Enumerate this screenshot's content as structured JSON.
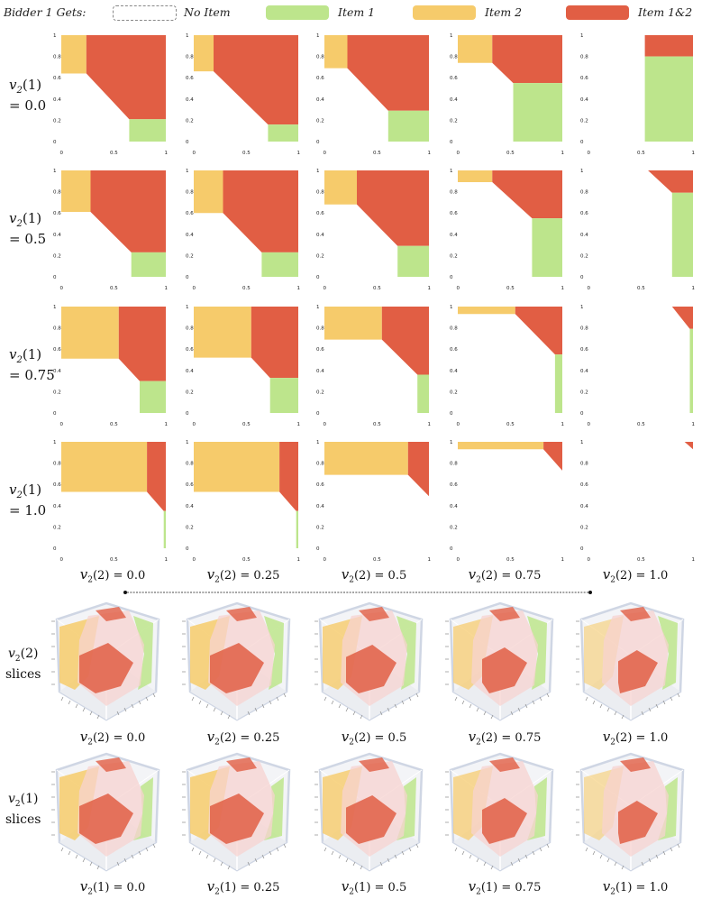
{
  "legend": {
    "title": "Bidder 1 Gets:",
    "items": [
      {
        "label": "No Item",
        "color": "#ffffff",
        "border": "#888888"
      },
      {
        "label": "Item 1",
        "color": "#bde58c"
      },
      {
        "label": "Item 2",
        "color": "#f6cb6b"
      },
      {
        "label": "Item 1&2",
        "color": "#e15e44"
      }
    ]
  },
  "colors": {
    "none": "#ffffff",
    "item1": "#bde58c",
    "item2": "#f6cb6b",
    "both": "#e15e44"
  },
  "grid_rows": [
    {
      "var": "v",
      "sub": "2",
      "arg": "(1)",
      "value": "= 0.0"
    },
    {
      "var": "v",
      "sub": "2",
      "arg": "(1)",
      "value": "= 0.5"
    },
    {
      "var": "v",
      "sub": "2",
      "arg": "(1)",
      "value": "= 0.75"
    },
    {
      "var": "v",
      "sub": "2",
      "arg": "(1)",
      "value": "= 1.0"
    }
  ],
  "grid_cols": [
    {
      "var": "v",
      "sub": "2",
      "arg": "(2) = 0.0"
    },
    {
      "var": "v",
      "sub": "2",
      "arg": "(2) = 0.25"
    },
    {
      "var": "v",
      "sub": "2",
      "arg": "(2) = 0.5"
    },
    {
      "var": "v",
      "sub": "2",
      "arg": "(2) = 0.75"
    },
    {
      "var": "v",
      "sub": "2",
      "arg": "(2) = 1.0"
    }
  ],
  "x_ticks": [
    "0",
    "0.5",
    "1"
  ],
  "y_ticks": [
    "1",
    "0.8",
    "0.6",
    "0.4",
    "0.2",
    "0"
  ],
  "chart_data": {
    "type": "area",
    "x_range": [
      0,
      1
    ],
    "y_range": [
      0,
      1
    ],
    "panels": [
      [
        {
          "item2": [
            [
              0,
              0.64
            ],
            [
              0.24,
              0.64
            ],
            [
              0.24,
              1
            ],
            [
              0,
              1
            ]
          ],
          "both": [
            [
              0.24,
              0.64
            ],
            [
              0.24,
              1
            ],
            [
              1,
              1
            ],
            [
              1,
              0.21
            ],
            [
              0.65,
              0.21
            ]
          ],
          "item1": [
            [
              0.65,
              0
            ],
            [
              1,
              0
            ],
            [
              1,
              0.21
            ],
            [
              0.65,
              0.21
            ]
          ]
        },
        {
          "item2": [
            [
              0,
              0.66
            ],
            [
              0.19,
              0.66
            ],
            [
              0.19,
              1
            ],
            [
              0,
              1
            ]
          ],
          "both": [
            [
              0.19,
              0.66
            ],
            [
              0.19,
              1
            ],
            [
              1,
              1
            ],
            [
              1,
              0.16
            ],
            [
              0.71,
              0.16
            ]
          ],
          "item1": [
            [
              0.71,
              0
            ],
            [
              1,
              0
            ],
            [
              1,
              0.16
            ],
            [
              0.71,
              0.16
            ]
          ]
        },
        {
          "item2": [
            [
              0,
              0.69
            ],
            [
              0.22,
              0.69
            ],
            [
              0.22,
              1
            ],
            [
              0,
              1
            ]
          ],
          "both": [
            [
              0.22,
              0.69
            ],
            [
              0.22,
              1
            ],
            [
              1,
              1
            ],
            [
              1,
              0.29
            ],
            [
              0.61,
              0.29
            ]
          ],
          "item1": [
            [
              0.61,
              0
            ],
            [
              1,
              0
            ],
            [
              1,
              0.29
            ],
            [
              0.61,
              0.29
            ]
          ]
        },
        {
          "item2": [
            [
              0,
              0.74
            ],
            [
              0.33,
              0.74
            ],
            [
              0.33,
              1
            ],
            [
              0,
              1
            ]
          ],
          "both": [
            [
              0.33,
              0.74
            ],
            [
              0.33,
              1
            ],
            [
              1,
              1
            ],
            [
              1,
              0.55
            ],
            [
              0.53,
              0.55
            ]
          ],
          "item1": [
            [
              0.53,
              0
            ],
            [
              1,
              0
            ],
            [
              1,
              0.55
            ],
            [
              0.53,
              0.55
            ]
          ]
        },
        {
          "item2": [],
          "both": [
            [
              0.54,
              1
            ],
            [
              1,
              1
            ],
            [
              1,
              0.8
            ],
            [
              0.54,
              0.8
            ],
            [
              0.54,
              0.98
            ]
          ],
          "item1": [
            [
              0.54,
              0
            ],
            [
              1,
              0
            ],
            [
              1,
              0.8
            ],
            [
              0.54,
              0.8
            ]
          ]
        }
      ],
      [
        {
          "item2": [
            [
              0,
              0.61
            ],
            [
              0.28,
              0.61
            ],
            [
              0.28,
              1
            ],
            [
              0,
              1
            ]
          ],
          "both": [
            [
              0.28,
              0.61
            ],
            [
              0.28,
              1
            ],
            [
              1,
              1
            ],
            [
              1,
              0.23
            ],
            [
              0.67,
              0.23
            ]
          ],
          "item1": [
            [
              0.67,
              0
            ],
            [
              1,
              0
            ],
            [
              1,
              0.23
            ],
            [
              0.67,
              0.23
            ]
          ]
        },
        {
          "item2": [
            [
              0,
              0.6
            ],
            [
              0.28,
              0.6
            ],
            [
              0.28,
              1
            ],
            [
              0,
              1
            ]
          ],
          "both": [
            [
              0.28,
              0.6
            ],
            [
              0.28,
              1
            ],
            [
              1,
              1
            ],
            [
              1,
              0.23
            ],
            [
              0.65,
              0.23
            ]
          ],
          "item1": [
            [
              0.65,
              0
            ],
            [
              1,
              0
            ],
            [
              1,
              0.23
            ],
            [
              0.65,
              0.23
            ]
          ]
        },
        {
          "item2": [
            [
              0,
              0.68
            ],
            [
              0.31,
              0.68
            ],
            [
              0.31,
              1
            ],
            [
              0,
              1
            ]
          ],
          "both": [
            [
              0.31,
              0.68
            ],
            [
              0.31,
              1
            ],
            [
              1,
              1
            ],
            [
              1,
              0.29
            ],
            [
              0.7,
              0.29
            ]
          ],
          "item1": [
            [
              0.7,
              0
            ],
            [
              1,
              0
            ],
            [
              1,
              0.29
            ],
            [
              0.7,
              0.29
            ]
          ]
        },
        {
          "item2": [
            [
              0,
              0.89
            ],
            [
              0.33,
              0.89
            ],
            [
              0.33,
              1
            ],
            [
              0,
              1
            ]
          ],
          "both": [
            [
              0.33,
              0.89
            ],
            [
              0.33,
              1
            ],
            [
              1,
              1
            ],
            [
              1,
              0.55
            ],
            [
              0.71,
              0.55
            ]
          ],
          "item1": [
            [
              0.71,
              0
            ],
            [
              1,
              0
            ],
            [
              1,
              0.55
            ],
            [
              0.71,
              0.55
            ]
          ]
        },
        {
          "item2": [],
          "both": [
            [
              0.57,
              1
            ],
            [
              1,
              1
            ],
            [
              1,
              0.79
            ],
            [
              0.8,
              0.79
            ]
          ],
          "item1": [
            [
              0.8,
              0
            ],
            [
              1,
              0
            ],
            [
              1,
              0.79
            ],
            [
              0.8,
              0.79
            ]
          ]
        }
      ],
      [
        {
          "item2": [
            [
              0,
              0.51
            ],
            [
              0.55,
              0.51
            ],
            [
              0.55,
              1
            ],
            [
              0,
              1
            ]
          ],
          "both": [
            [
              0.55,
              0.51
            ],
            [
              0.55,
              1
            ],
            [
              1,
              1
            ],
            [
              1,
              0.3
            ],
            [
              0.75,
              0.3
            ]
          ],
          "item1": [
            [
              0.75,
              0
            ],
            [
              1,
              0
            ],
            [
              1,
              0.3
            ],
            [
              0.75,
              0.3
            ]
          ]
        },
        {
          "item2": [
            [
              0,
              0.52
            ],
            [
              0.55,
              0.52
            ],
            [
              0.55,
              1
            ],
            [
              0,
              1
            ]
          ],
          "both": [
            [
              0.55,
              0.52
            ],
            [
              0.55,
              1
            ],
            [
              1,
              1
            ],
            [
              1,
              0.33
            ],
            [
              0.73,
              0.33
            ]
          ],
          "item1": [
            [
              0.73,
              0
            ],
            [
              1,
              0
            ],
            [
              1,
              0.33
            ],
            [
              0.73,
              0.33
            ]
          ]
        },
        {
          "item2": [
            [
              0,
              0.69
            ],
            [
              0.55,
              0.69
            ],
            [
              0.55,
              1
            ],
            [
              0,
              1
            ]
          ],
          "both": [
            [
              0.55,
              0.69
            ],
            [
              0.55,
              1
            ],
            [
              1,
              1
            ],
            [
              1,
              0.36
            ],
            [
              0.89,
              0.36
            ]
          ],
          "item1": [
            [
              0.89,
              0
            ],
            [
              1,
              0
            ],
            [
              1,
              0.36
            ],
            [
              0.89,
              0.36
            ]
          ]
        },
        {
          "item2": [
            [
              0,
              0.93
            ],
            [
              0.55,
              0.93
            ],
            [
              0.55,
              1
            ],
            [
              0,
              1
            ]
          ],
          "both": [
            [
              0.55,
              0.93
            ],
            [
              0.55,
              1
            ],
            [
              1,
              1
            ],
            [
              1,
              0.55
            ],
            [
              0.93,
              0.55
            ]
          ],
          "item1": [
            [
              0.93,
              0
            ],
            [
              1,
              0
            ],
            [
              1,
              0.55
            ],
            [
              0.93,
              0.55
            ]
          ]
        },
        {
          "item2": [],
          "both": [
            [
              0.8,
              1
            ],
            [
              1,
              1
            ],
            [
              1,
              0.79
            ],
            [
              0.97,
              0.79
            ]
          ],
          "item1": [
            [
              0.97,
              0
            ],
            [
              1,
              0
            ],
            [
              1,
              0.79
            ],
            [
              0.97,
              0.79
            ]
          ]
        }
      ],
      [
        {
          "item2": [
            [
              0,
              0.53
            ],
            [
              0.82,
              0.53
            ],
            [
              0.82,
              1
            ],
            [
              0,
              1
            ]
          ],
          "both": [
            [
              0.82,
              0.53
            ],
            [
              0.82,
              1
            ],
            [
              1,
              1
            ],
            [
              1,
              0.35
            ],
            [
              0.98,
              0.35
            ]
          ],
          "item1": [
            [
              0.98,
              0
            ],
            [
              1,
              0
            ],
            [
              1,
              0.35
            ],
            [
              0.98,
              0.35
            ]
          ]
        },
        {
          "item2": [
            [
              0,
              0.53
            ],
            [
              0.82,
              0.53
            ],
            [
              0.82,
              1
            ],
            [
              0,
              1
            ]
          ],
          "both": [
            [
              0.82,
              0.53
            ],
            [
              0.82,
              1
            ],
            [
              1,
              1
            ],
            [
              1,
              0.35
            ],
            [
              0.98,
              0.35
            ]
          ],
          "item1": [
            [
              0.98,
              0
            ],
            [
              1,
              0
            ],
            [
              1,
              0.35
            ],
            [
              0.98,
              0.35
            ]
          ]
        },
        {
          "item2": [
            [
              0,
              0.69
            ],
            [
              0.8,
              0.69
            ],
            [
              0.8,
              1
            ],
            [
              0,
              1
            ]
          ],
          "both": [
            [
              0.8,
              0.69
            ],
            [
              0.8,
              1
            ],
            [
              1,
              1
            ],
            [
              1,
              0.49
            ]
          ],
          "item1": []
        },
        {
          "item2": [
            [
              0,
              0.93
            ],
            [
              0.82,
              0.93
            ],
            [
              0.82,
              1
            ],
            [
              0,
              1
            ]
          ],
          "both": [
            [
              0.82,
              0.93
            ],
            [
              0.82,
              1
            ],
            [
              1,
              1
            ],
            [
              1,
              0.73
            ]
          ],
          "item1": []
        },
        {
          "item2": [],
          "both": [
            [
              0.92,
              1
            ],
            [
              1,
              1
            ],
            [
              1,
              0.93
            ]
          ],
          "item1": []
        }
      ]
    ]
  },
  "cube_rows": [
    {
      "label_line1": "v",
      "label_sub": "2",
      "label_arg": "(2)",
      "label_line2": "slices",
      "captions": [
        {
          "var": "v",
          "sub": "2",
          "arg": "(2) = 0.0"
        },
        {
          "var": "v",
          "sub": "2",
          "arg": "(2) = 0.25"
        },
        {
          "var": "v",
          "sub": "2",
          "arg": "(2) = 0.5"
        },
        {
          "var": "v",
          "sub": "2",
          "arg": "(2) = 0.75"
        },
        {
          "var": "v",
          "sub": "2",
          "arg": "(2) = 1.0"
        }
      ]
    },
    {
      "label_line1": "v",
      "label_sub": "2",
      "label_arg": "(1)",
      "label_line2": "slices",
      "captions": [
        {
          "var": "v",
          "sub": "2",
          "arg": "(1) = 0.0"
        },
        {
          "var": "v",
          "sub": "2",
          "arg": "(1) = 0.25"
        },
        {
          "var": "v",
          "sub": "2",
          "arg": "(1) = 0.5"
        },
        {
          "var": "v",
          "sub": "2",
          "arg": "(1) = 0.75"
        },
        {
          "var": "v",
          "sub": "2",
          "arg": "(1) = 1.0"
        }
      ]
    }
  ]
}
